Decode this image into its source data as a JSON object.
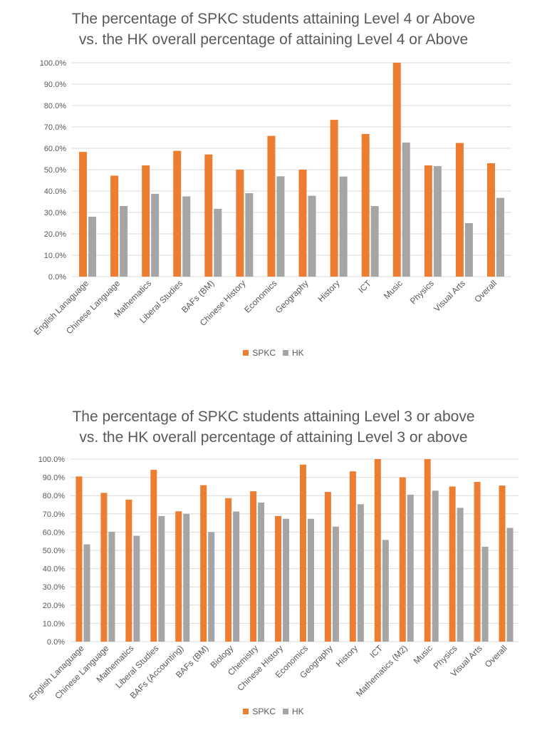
{
  "colors": {
    "spkc": "#ED7D31",
    "hk": "#A5A5A5",
    "grid": "#D9D9D9",
    "text": "#595959"
  },
  "chart_data": [
    {
      "type": "bar",
      "title_line1": "The percentage of SPKC students attaining Level 4 or Above",
      "title_line2": "vs. the HK overall percentage of attaining Level 4 or Above",
      "categories": [
        "English Lanaguage",
        "Chinese Language",
        "Mathematics",
        "Liberal Studies",
        "BAFs (BM)",
        "Chinese History",
        "Economics",
        "Geography",
        "History",
        "ICT",
        "Music",
        "Physics",
        "Visual Arts",
        "Overall"
      ],
      "series": [
        {
          "name": "SPKC",
          "values": [
            58.3,
            47.2,
            52.0,
            58.8,
            57.1,
            50.0,
            65.8,
            50.0,
            73.3,
            66.7,
            100.0,
            52.0,
            62.5,
            53.0
          ]
        },
        {
          "name": "HK",
          "values": [
            28.0,
            33.0,
            38.7,
            37.5,
            31.7,
            39.0,
            46.9,
            37.8,
            46.8,
            33.0,
            62.7,
            51.7,
            25.0,
            36.8
          ]
        }
      ],
      "ylim": [
        0,
        100
      ],
      "yticks": [
        "0.0%",
        "10.0%",
        "20.0%",
        "30.0%",
        "40.0%",
        "50.0%",
        "60.0%",
        "70.0%",
        "80.0%",
        "90.0%",
        "100.0%"
      ],
      "grid": true,
      "legend": "bottom"
    },
    {
      "type": "bar",
      "title_line1": "The percentage of SPKC students attaining Level 3 or above",
      "title_line2": "vs. the HK overall percentage of attaining Level 3 or above",
      "categories": [
        "English Lanaguage",
        "Chinese Language",
        "Mathematics",
        "Liberal Studies",
        "BAFs (Accounting)",
        "BAFs (BM)",
        "Biology",
        "Chemistry",
        "Chinese History",
        "Economics",
        "Geography",
        "History",
        "ICT",
        "Mathematics (M2)",
        "Music",
        "Physics",
        "Visual Arts",
        "Overall"
      ],
      "series": [
        {
          "name": "SPKC",
          "values": [
            90.5,
            81.5,
            77.8,
            94.1,
            71.4,
            85.7,
            78.6,
            82.4,
            68.8,
            97.0,
            82.0,
            93.3,
            100.0,
            90.0,
            100.0,
            85.0,
            87.5,
            85.5
          ]
        },
        {
          "name": "HK",
          "values": [
            53.3,
            60.2,
            58.0,
            68.8,
            70.0,
            60.0,
            71.3,
            76.2,
            67.3,
            67.3,
            63.0,
            75.3,
            55.7,
            80.5,
            82.7,
            73.3,
            52.0,
            62.3
          ]
        }
      ],
      "ylim": [
        0,
        100
      ],
      "yticks": [
        "0.0%",
        "10.0%",
        "20.0%",
        "30.0%",
        "40.0%",
        "50.0%",
        "60.0%",
        "70.0%",
        "80.0%",
        "90.0%",
        "100.0%"
      ],
      "grid": true,
      "legend": "bottom"
    }
  ]
}
